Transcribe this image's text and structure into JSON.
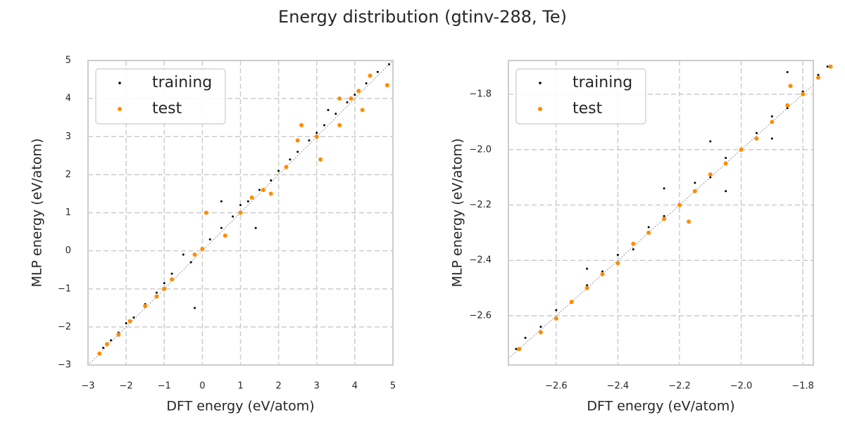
{
  "title": "Energy distribution (gtinv-288, Te)",
  "chart_data": [
    {
      "type": "scatter",
      "xlabel": "DFT energy (eV/atom)",
      "ylabel": "MLP energy (eV/atom)",
      "xlim": [
        -3,
        5
      ],
      "ylim": [
        -3,
        5
      ],
      "xticks": [
        {
          "value": -3,
          "label": "−3"
        },
        {
          "value": -2,
          "label": "−2"
        },
        {
          "value": -1,
          "label": "−1"
        },
        0,
        1,
        2,
        3,
        4,
        5
      ],
      "yticks": [
        {
          "value": -3,
          "label": "−3"
        },
        {
          "value": -2,
          "label": "−2"
        },
        {
          "value": -1,
          "label": "−1"
        },
        0,
        1,
        2,
        3,
        4,
        5
      ],
      "grid": true,
      "legend": "upper left",
      "series": [
        {
          "name": "training",
          "color": "#000000",
          "x": [
            -2.7,
            -2.6,
            -2.4,
            -2.2,
            -2.0,
            -1.8,
            -1.5,
            -1.2,
            -1.0,
            -0.8,
            -0.5,
            -0.3,
            0,
            0.2,
            0.5,
            0.8,
            1.0,
            1.2,
            1.5,
            1.8,
            2.0,
            2.3,
            2.5,
            2.8,
            3.0,
            3.2,
            3.5,
            3.8,
            4.0,
            4.3,
            4.6,
            4.9,
            0.5,
            1.4,
            -0.2,
            3.3
          ],
          "values": [
            -2.7,
            -2.55,
            -2.35,
            -2.15,
            -1.9,
            -1.75,
            -1.4,
            -1.1,
            -0.85,
            -0.6,
            -0.1,
            -0.3,
            0.05,
            0.3,
            0.6,
            0.9,
            1.2,
            1.3,
            1.6,
            1.85,
            2.1,
            2.4,
            2.6,
            2.9,
            3.1,
            3.3,
            3.6,
            3.9,
            4.1,
            4.4,
            4.7,
            4.9,
            1.3,
            0.6,
            -1.5,
            3.7
          ]
        },
        {
          "name": "test",
          "color": "#ff8c00",
          "x": [
            -2.7,
            -2.5,
            -2.2,
            -1.9,
            -1.5,
            -1.2,
            -1.0,
            -0.8,
            -0.2,
            0,
            0.1,
            0.6,
            1.0,
            1.3,
            1.6,
            1.8,
            2.2,
            2.6,
            2.5,
            3.0,
            3.1,
            3.6,
            3.6,
            4.1,
            4.2,
            4.4,
            4.85,
            3.9
          ],
          "values": [
            -2.7,
            -2.45,
            -2.2,
            -1.85,
            -1.45,
            -1.2,
            -1.0,
            -0.75,
            -0.1,
            0.05,
            1.0,
            0.4,
            1.0,
            1.4,
            1.6,
            1.5,
            2.2,
            3.3,
            2.9,
            3.0,
            2.4,
            3.3,
            4.0,
            4.2,
            3.7,
            4.6,
            4.35,
            4.0
          ]
        }
      ]
    },
    {
      "type": "scatter",
      "xlabel": "DFT energy (eV/atom)",
      "ylabel": "MLP energy (eV/atom)",
      "xlim": [
        -2.755,
        -1.766
      ],
      "ylim": [
        -2.778,
        -1.678
      ],
      "xticks": [
        {
          "value": -2.6,
          "label": "−2.6"
        },
        {
          "value": -2.4,
          "label": "−2.4"
        },
        {
          "value": -2.2,
          "label": "−2.2"
        },
        {
          "value": -2.0,
          "label": "−2.0"
        },
        {
          "value": -1.8,
          "label": "−1.8"
        }
      ],
      "yticks": [
        {
          "value": -2.6,
          "label": "−2.6"
        },
        {
          "value": -2.4,
          "label": "−2.4"
        },
        {
          "value": -2.2,
          "label": "−2.2"
        },
        {
          "value": -2.0,
          "label": "−2.0"
        },
        {
          "value": -1.8,
          "label": "−1.8"
        }
      ],
      "grid": true,
      "legend": "upper left",
      "series": [
        {
          "name": "training",
          "color": "#000000",
          "x": [
            -2.73,
            -2.7,
            -2.65,
            -2.6,
            -2.55,
            -2.5,
            -2.45,
            -2.4,
            -2.35,
            -2.3,
            -2.25,
            -2.2,
            -2.15,
            -2.1,
            -2.05,
            -2.0,
            -1.95,
            -1.9,
            -1.85,
            -1.8,
            -1.75,
            -1.72,
            -2.1,
            -1.85,
            -2.25,
            -2.05,
            -2.5,
            -1.9
          ],
          "values": [
            -2.72,
            -2.68,
            -2.64,
            -2.58,
            -2.55,
            -2.49,
            -2.44,
            -2.38,
            -2.36,
            -2.28,
            -2.24,
            -2.2,
            -2.12,
            -2.1,
            -2.03,
            -2.0,
            -1.94,
            -1.88,
            -1.85,
            -1.79,
            -1.73,
            -1.7,
            -1.97,
            -1.72,
            -2.14,
            -2.15,
            -2.43,
            -1.96
          ]
        },
        {
          "name": "test",
          "color": "#ff8c00",
          "x": [
            -2.72,
            -2.65,
            -2.6,
            -2.55,
            -2.5,
            -2.45,
            -2.4,
            -2.35,
            -2.3,
            -2.25,
            -2.2,
            -2.15,
            -2.1,
            -2.05,
            -2.0,
            -1.95,
            -1.9,
            -1.85,
            -1.8,
            -1.75,
            -1.71,
            -2.17,
            -1.84
          ],
          "values": [
            -2.72,
            -2.66,
            -2.61,
            -2.55,
            -2.5,
            -2.45,
            -2.41,
            -2.34,
            -2.3,
            -2.25,
            -2.2,
            -2.15,
            -2.09,
            -2.05,
            -2.0,
            -1.96,
            -1.9,
            -1.84,
            -1.8,
            -1.74,
            -1.7,
            -2.26,
            -1.77
          ]
        }
      ]
    }
  ]
}
